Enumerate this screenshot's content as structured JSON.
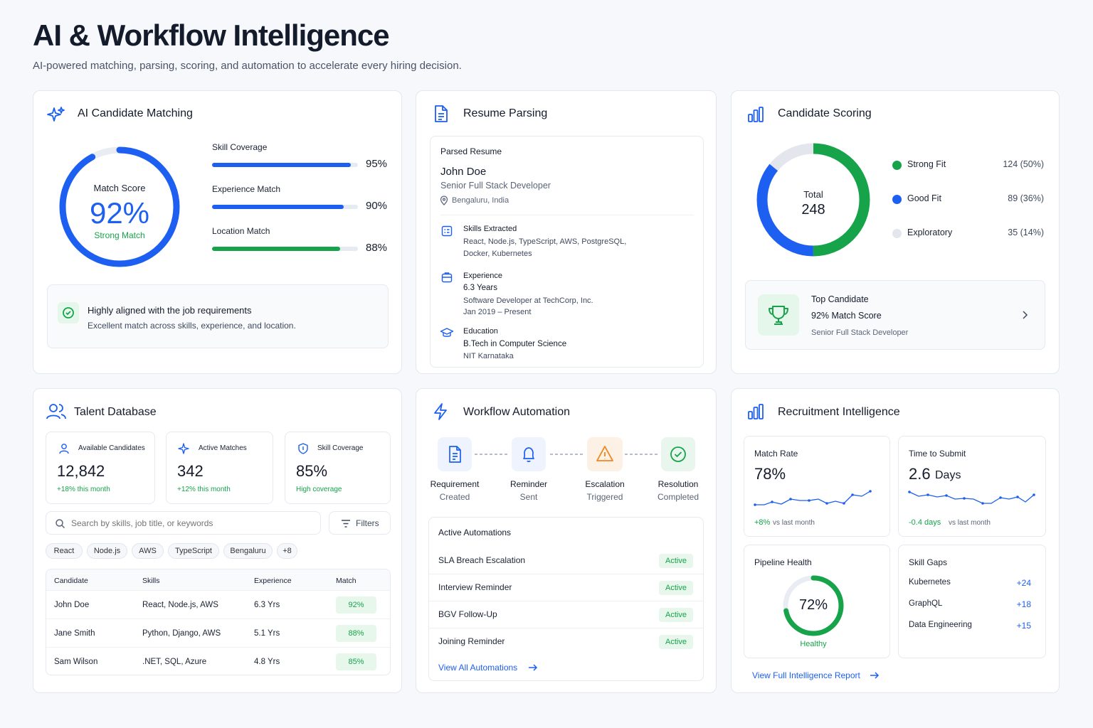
{
  "header": {
    "title": "AI & Workflow Intelligence",
    "subtitle": "AI-powered matching, parsing, scoring, and automation to accelerate every hiring decision."
  },
  "matching": {
    "title": "AI Candidate Matching",
    "score_label": "Match Score",
    "score": "92%",
    "score_fraction": 0.92,
    "score_status": "Strong Match",
    "bars": [
      {
        "label": "Skill Coverage",
        "value": "95%",
        "fraction": 0.95,
        "color": "#1d5ff0"
      },
      {
        "label": "Experience Match",
        "value": "90%",
        "fraction": 0.9,
        "color": "#1d5ff0"
      },
      {
        "label": "Location Match",
        "value": "88%",
        "fraction": 0.88,
        "color": "#16a34a"
      }
    ],
    "insight_title": "Highly aligned with the job requirements",
    "insight_desc": "Excellent match across skills, experience, and location."
  },
  "parsing": {
    "title": "Resume Parsing",
    "panel_label": "Parsed Resume",
    "name": "John Doe",
    "role": "Senior Full Stack Developer",
    "location": "Bengaluru, India",
    "skills_label": "Skills Extracted",
    "skills_line1": "React, Node.js, TypeScript, AWS, PostgreSQL,",
    "skills_line2": "Docker, Kubernetes",
    "exp_label": "Experience",
    "exp_years": "6.3 Years",
    "exp_company": "Software Developer at TechCorp, Inc.",
    "exp_dates": "Jan 2019 – Present",
    "edu_label": "Education",
    "edu_degree": "B.Tech in Computer Science",
    "edu_school": "NIT Karnataka"
  },
  "scoring": {
    "title": "Candidate Scoring",
    "total_label": "Total",
    "total": "248",
    "segments": [
      {
        "label": "Strong Fit",
        "value": "124 (50%)",
        "count": 124,
        "color": "#16a34a"
      },
      {
        "label": "Good Fit",
        "value": "89 (36%)",
        "count": 89,
        "color": "#1d5ff0"
      },
      {
        "label": "Exploratory",
        "value": "35 (14%)",
        "count": 35,
        "color": "#e3e6ec"
      }
    ],
    "top_label": "Top Candidate",
    "top_score": "92% Match Score",
    "top_role": "Senior Full Stack Developer"
  },
  "talent": {
    "title": "Talent Database",
    "stats": [
      {
        "label": "Available Candidates",
        "value": "12,842",
        "sub": "+18% this month"
      },
      {
        "label": "Active Matches",
        "value": "342",
        "sub": "+12% this month"
      },
      {
        "label": "Skill Coverage",
        "value": "85%",
        "sub": "High coverage"
      }
    ],
    "search_placeholder": "Search by skills, job title, or keywords",
    "filters_label": "Filters",
    "tags": [
      "React",
      "Node.js",
      "AWS",
      "TypeScript",
      "Bengaluru",
      "+8"
    ],
    "columns": [
      "Candidate",
      "Skills",
      "Experience",
      "Match"
    ],
    "rows": [
      {
        "name": "John Doe",
        "skills": "React, Node.js, AWS",
        "exp": "6.3 Yrs",
        "match": "92%"
      },
      {
        "name": "Jane Smith",
        "skills": "Python, Django, AWS",
        "exp": "5.1 Yrs",
        "match": "88%"
      },
      {
        "name": "Sam Wilson",
        "skills": ".NET, SQL, Azure",
        "exp": "4.8 Yrs",
        "match": "85%"
      }
    ]
  },
  "workflow": {
    "title": "Workflow Automation",
    "steps": [
      {
        "line1": "Requirement",
        "line2": "Created",
        "icon": "document-icon"
      },
      {
        "line1": "Reminder",
        "line2": "Sent",
        "icon": "bell-icon"
      },
      {
        "line1": "Escalation",
        "line2": "Triggered",
        "icon": "warning-icon"
      },
      {
        "line1": "Resolution",
        "line2": "Completed",
        "icon": "check-circle-icon"
      }
    ],
    "active_title": "Active Automations",
    "automations": [
      {
        "name": "SLA Breach Escalation",
        "status": "Active"
      },
      {
        "name": "Interview Reminder",
        "status": "Active"
      },
      {
        "name": "BGV Follow-Up",
        "status": "Active"
      },
      {
        "name": "Joining Reminder",
        "status": "Active"
      }
    ],
    "view_all": "View All Automations"
  },
  "intel": {
    "title": "Recruitment Intelligence",
    "match_rate_label": "Match Rate",
    "match_rate": "78%",
    "match_rate_delta": "+8%",
    "match_rate_delta_suffix": "vs last month",
    "tts_label": "Time to Submit",
    "tts_value": "2.6",
    "tts_unit": "Days",
    "tts_delta": "-0.4 days",
    "tts_delta_suffix": "vs last month",
    "pipeline_label": "Pipeline Health",
    "pipeline_value": "72%",
    "pipeline_fraction": 0.72,
    "pipeline_status": "Healthy",
    "gaps_label": "Skill Gaps",
    "gaps": [
      {
        "name": "Kubernetes",
        "value": "+24"
      },
      {
        "name": "GraphQL",
        "value": "+18"
      },
      {
        "name": "Data Engineering",
        "value": "+15"
      }
    ],
    "view_report": "View Full Intelligence Report"
  },
  "colors": {
    "blue": "#1d5ff0",
    "green": "#16a34a",
    "orange": "#f0861d"
  }
}
